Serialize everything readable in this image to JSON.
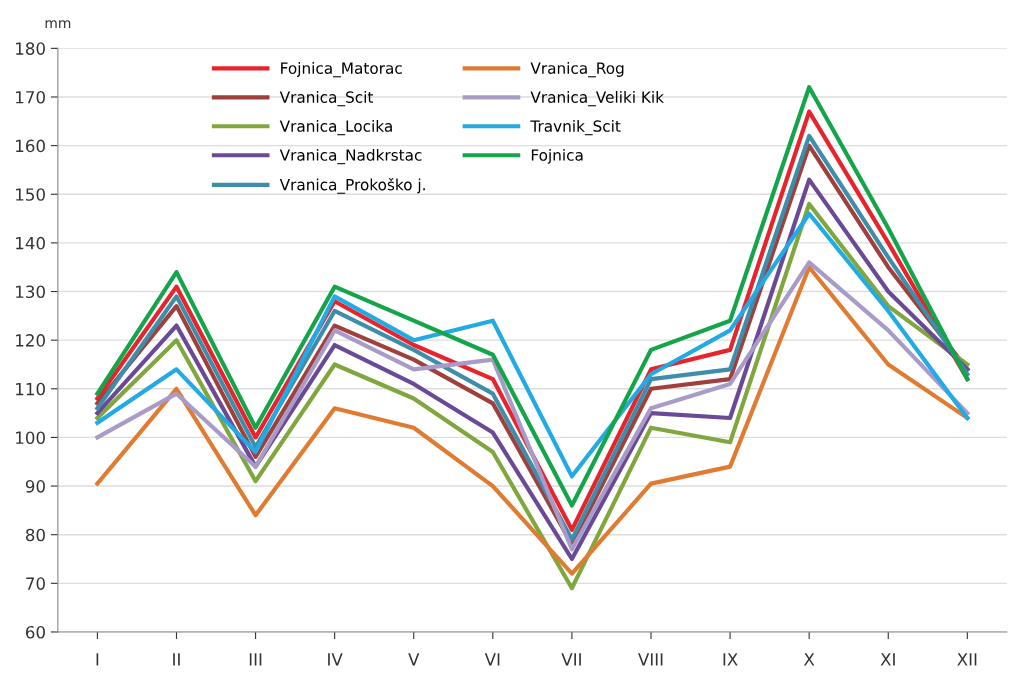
{
  "chart_data": {
    "type": "line",
    "ylabel": "mm",
    "categories": [
      "I",
      "II",
      "III",
      "IV",
      "V",
      "VI",
      "VII",
      "VIII",
      "IX",
      "X",
      "XI",
      "XII"
    ],
    "ylim": [
      60,
      180
    ],
    "yticks": [
      60,
      70,
      80,
      90,
      100,
      110,
      120,
      130,
      140,
      150,
      160,
      170,
      180
    ],
    "grid": "y",
    "legend": "top left",
    "marker": "none",
    "line_style": "solid",
    "series": [
      {
        "name": "Fojnica_Matorac",
        "color": "#e8232b",
        "values": [
          108,
          131,
          100,
          128,
          119,
          112,
          81,
          114,
          118,
          167,
          140,
          112
        ]
      },
      {
        "name": "Vranica_Scit",
        "color": "#a0403c",
        "values": [
          107,
          127,
          96,
          123,
          116,
          107,
          78,
          110,
          112,
          160,
          135,
          114
        ]
      },
      {
        "name": "Vranica_Locika",
        "color": "#7fa73e",
        "values": [
          104,
          120,
          91,
          115,
          108,
          97,
          69,
          102,
          99,
          148,
          127,
          115
        ]
      },
      {
        "name": "Vranica_Nadkrstac",
        "color": "#6a4a96",
        "values": [
          105,
          123,
          94,
          119,
          111,
          101,
          75,
          105,
          104,
          153,
          130,
          114
        ]
      },
      {
        "name": "Vranica_Prokoško j.",
        "color": "#3e8eab",
        "values": [
          106,
          129,
          98,
          126,
          118,
          109,
          79,
          112,
          114,
          162,
          137,
          113
        ]
      },
      {
        "name": "Vranica_Rog",
        "color": "#e07b32",
        "values": [
          90.5,
          110,
          84,
          106,
          102,
          90,
          72,
          90.5,
          94,
          135,
          115,
          104
        ]
      },
      {
        "name": "Vranica_Veliki Kik",
        "color": "#a99bc8",
        "values": [
          100,
          109,
          94,
          122,
          114,
          116,
          77,
          106,
          111,
          136,
          122,
          105
        ]
      },
      {
        "name": "Travnik_Scit",
        "color": "#21aae3",
        "values": [
          103,
          114,
          97,
          129,
          120,
          124,
          92,
          113,
          122,
          146,
          126,
          104
        ]
      },
      {
        "name": "Fojnica",
        "color": "#14a54a",
        "values": [
          109,
          134,
          102,
          131,
          124,
          117,
          86,
          118,
          124,
          172,
          143,
          112
        ]
      }
    ]
  }
}
